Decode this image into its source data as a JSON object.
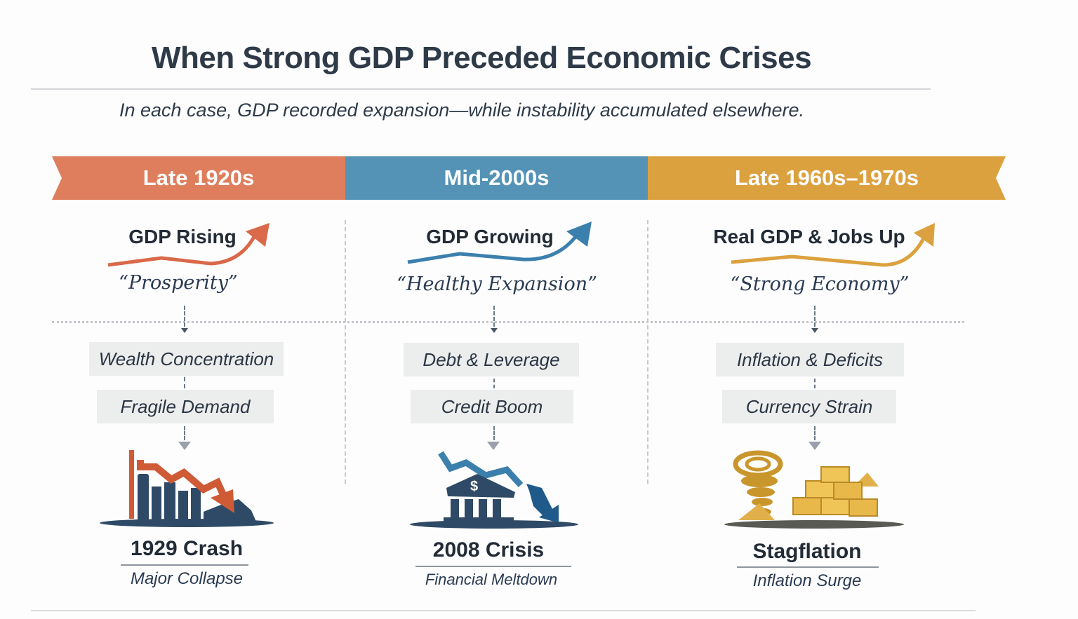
{
  "title": "When Strong GDP Preceded Economic Crises",
  "subtitle": "In each case, GDP recorded expansion—while instability accumulated elsewhere.",
  "colors": {
    "orange": "#de7e5d",
    "blue": "#5493b6",
    "gold": "#dca13f",
    "navy": "#2e4a66"
  },
  "columns": [
    {
      "period": "Late 1920s",
      "gdp_label": "GDP Rising",
      "quote": "“Prosperity”",
      "factors": [
        "Wealth Concentration",
        "Fragile Demand"
      ],
      "icon": "falling-bar-chart-icon",
      "outcome": "1929 Crash",
      "outcome_sub": "Major Collapse"
    },
    {
      "period": "Mid-2000s",
      "gdp_label": "GDP Growing",
      "quote": "“Healthy Expansion”",
      "factors": [
        "Debt & Leverage",
        "Credit Boom"
      ],
      "icon": "crumbling-bank-icon",
      "outcome": "2008 Crisis",
      "outcome_sub": "Financial Meltdown"
    },
    {
      "period": "Late 1960s–1970s",
      "gdp_label": "Real GDP & Jobs Up",
      "quote": "“Strong Economy”",
      "factors": [
        "Inflation & Deficits",
        "Currency Strain"
      ],
      "icon": "tornado-gold-bars-icon",
      "outcome": "Stagflation",
      "outcome_sub": "Inflation Surge"
    }
  ]
}
